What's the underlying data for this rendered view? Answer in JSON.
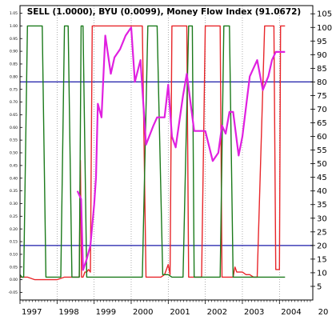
{
  "chart_data": {
    "type": "line",
    "title": "SELL (1.0000), BYU (0.0099), Money Flow Index (91.0672)",
    "x_tick_labels": [
      "1997",
      "1998",
      "1999",
      "2000",
      "2001",
      "2002",
      "2003",
      "2004",
      "20"
    ],
    "x_range": [
      1997.0,
      2004.9
    ],
    "left_axis": {
      "range": [
        -0.08,
        1.08
      ],
      "ticks": [
        1.05,
        1.0,
        0.95,
        0.9,
        0.85,
        0.8,
        0.75,
        0.7,
        0.65,
        0.6,
        0.55,
        0.5,
        0.45,
        0.4,
        0.35,
        0.3,
        0.25,
        0.2,
        0.15,
        0.1,
        0.05,
        0.0,
        -0.05
      ],
      "tick_labels": [
        "1.05",
        "1.00",
        "0.95",
        "0.90",
        "0.85",
        "0.80",
        "0.75",
        "0.70",
        "0.65",
        "0.60",
        "0.55",
        "0.50",
        "0.45",
        "0.40",
        "0.35",
        "0.30",
        "0.25",
        "0.20",
        "0.15",
        "0.10",
        "0.05",
        "0.00",
        "-0.05"
      ]
    },
    "right_axis": {
      "range": [
        0,
        108
      ],
      "ticks": [
        105,
        100,
        95,
        90,
        85,
        80,
        75,
        70,
        65,
        60,
        55,
        50,
        45,
        40,
        35,
        30,
        25,
        20,
        15,
        10,
        5
      ],
      "tick_labels": [
        "105",
        "100",
        "95",
        "90",
        "85",
        "80",
        "75",
        "70",
        "65",
        "60",
        "55",
        "50",
        "45",
        "40",
        "35",
        "30",
        "25",
        "20",
        "15",
        "10",
        "5"
      ]
    },
    "reference_lines": [
      80,
      20
    ],
    "grid": "vertical dotted",
    "series": [
      {
        "name": "SELL",
        "color": "#e8262a",
        "axis": "left",
        "x": [
          1997.0,
          1997.2,
          1997.4,
          1997.6,
          1997.8,
          1998.0,
          1998.2,
          1998.4,
          1998.5,
          1998.6,
          1998.63,
          1998.66,
          1998.7,
          1998.75,
          1998.8,
          1998.85,
          1998.9,
          1998.95,
          1999.0,
          1999.05,
          1999.1,
          1999.2,
          1999.3,
          1999.6,
          1999.75,
          1999.85,
          1999.95,
          2000.1,
          2000.3,
          2000.4,
          2000.45,
          2000.5,
          2000.6,
          2000.8,
          2000.9,
          2001.0,
          2001.05,
          2001.1,
          2001.15,
          2001.5,
          2001.55,
          2001.6,
          2001.7,
          2001.9,
          2002.0,
          2002.05,
          2002.1,
          2002.4,
          2002.45,
          2002.5,
          2002.6,
          2002.75,
          2002.8,
          2002.85,
          2002.9,
          2003.0,
          2003.1,
          2003.2,
          2003.3,
          2003.35,
          2003.4,
          2003.6,
          2003.65,
          2003.75,
          2003.85,
          2003.9,
          2004.0,
          2004.03,
          2004.15
        ],
        "y": [
          0.01,
          0.01,
          0.0,
          0.0,
          0.0,
          0.0,
          0.01,
          0.01,
          0.01,
          0.01,
          0.47,
          0.01,
          0.01,
          0.03,
          0.03,
          0.04,
          0.03,
          1.0,
          1.0,
          1.0,
          1.0,
          1.0,
          1.0,
          1.0,
          1.0,
          1.0,
          1.0,
          1.0,
          1.0,
          0.01,
          0.01,
          0.01,
          0.01,
          0.01,
          0.02,
          0.06,
          0.02,
          1.0,
          1.0,
          1.0,
          0.01,
          0.01,
          0.01,
          0.01,
          1.0,
          1.0,
          1.0,
          1.0,
          0.01,
          0.01,
          0.01,
          0.01,
          0.05,
          0.03,
          0.03,
          0.03,
          0.02,
          0.02,
          0.01,
          0.01,
          0.01,
          1.0,
          1.0,
          1.0,
          1.0,
          0.04,
          0.04,
          1.0,
          1.0
        ]
      },
      {
        "name": "BYU",
        "color": "#1b7a1b",
        "axis": "left",
        "x": [
          1997.0,
          1997.05,
          1997.1,
          1997.2,
          1997.3,
          1997.45,
          1997.6,
          1997.7,
          1997.8,
          1998.0,
          1998.1,
          1998.2,
          1998.3,
          1998.4,
          1998.5,
          1998.55,
          1998.6,
          1998.65,
          1998.7,
          1998.8,
          1998.9,
          1999.0,
          1999.2,
          1999.3,
          1999.4,
          1999.5,
          1999.7,
          1999.9,
          2000.0,
          2000.1,
          2000.2,
          2000.3,
          2000.45,
          2000.55,
          2000.7,
          2000.85,
          2001.0,
          2001.1,
          2001.2,
          2001.4,
          2001.55,
          2001.65,
          2001.7,
          2001.8,
          2001.9,
          2002.0,
          2002.2,
          2002.4,
          2002.5,
          2002.65,
          2002.75,
          2002.9,
          2003.0,
          2003.2,
          2003.35,
          2003.45,
          2003.55,
          2003.6,
          2003.8,
          2004.0,
          2004.15
        ],
        "y": [
          0.02,
          0.01,
          0.01,
          1.0,
          1.0,
          1.0,
          1.0,
          0.01,
          0.01,
          0.01,
          0.01,
          1.0,
          1.0,
          0.01,
          0.01,
          0.01,
          0.01,
          1.0,
          1.0,
          0.01,
          0.01,
          0.01,
          0.01,
          0.01,
          0.01,
          0.01,
          0.01,
          0.01,
          0.01,
          0.01,
          0.01,
          0.01,
          1.0,
          1.0,
          1.0,
          0.02,
          0.02,
          0.01,
          0.01,
          0.01,
          1.0,
          1.0,
          0.01,
          0.01,
          0.01,
          0.01,
          0.01,
          0.01,
          1.0,
          1.0,
          0.01,
          0.01,
          0.01,
          0.01,
          0.01,
          0.01,
          0.01,
          0.01,
          0.01,
          0.01,
          0.01
        ]
      },
      {
        "name": "Money Flow Index",
        "color": "#e020e0",
        "axis": "right",
        "x": [
          1998.55,
          1998.65,
          1998.7,
          1998.8,
          1998.9,
          1999.0,
          1999.05,
          1999.1,
          1999.2,
          1999.3,
          1999.45,
          1999.55,
          1999.7,
          1999.85,
          2000.0,
          2000.1,
          2000.25,
          2000.4,
          2000.6,
          2000.7,
          2000.9,
          2001.0,
          2001.1,
          2001.2,
          2001.4,
          2001.5,
          2001.7,
          2002.0,
          2002.2,
          2002.35,
          2002.45,
          2002.55,
          2002.65,
          2002.75,
          2002.9,
          2003.0,
          2003.2,
          2003.4,
          2003.55,
          2003.7,
          2003.8,
          2003.9,
          2004.0,
          2004.15
        ],
        "y": [
          40,
          37,
          11,
          15,
          20,
          35,
          45,
          72,
          67,
          97,
          83,
          89,
          92,
          97,
          100,
          80,
          88,
          57,
          64,
          67,
          67,
          79,
          60,
          56,
          75,
          83,
          62,
          62,
          51,
          54,
          64,
          61,
          69,
          69,
          53,
          60,
          82,
          88,
          77,
          82,
          88,
          91,
          91,
          91
        ]
      }
    ]
  }
}
